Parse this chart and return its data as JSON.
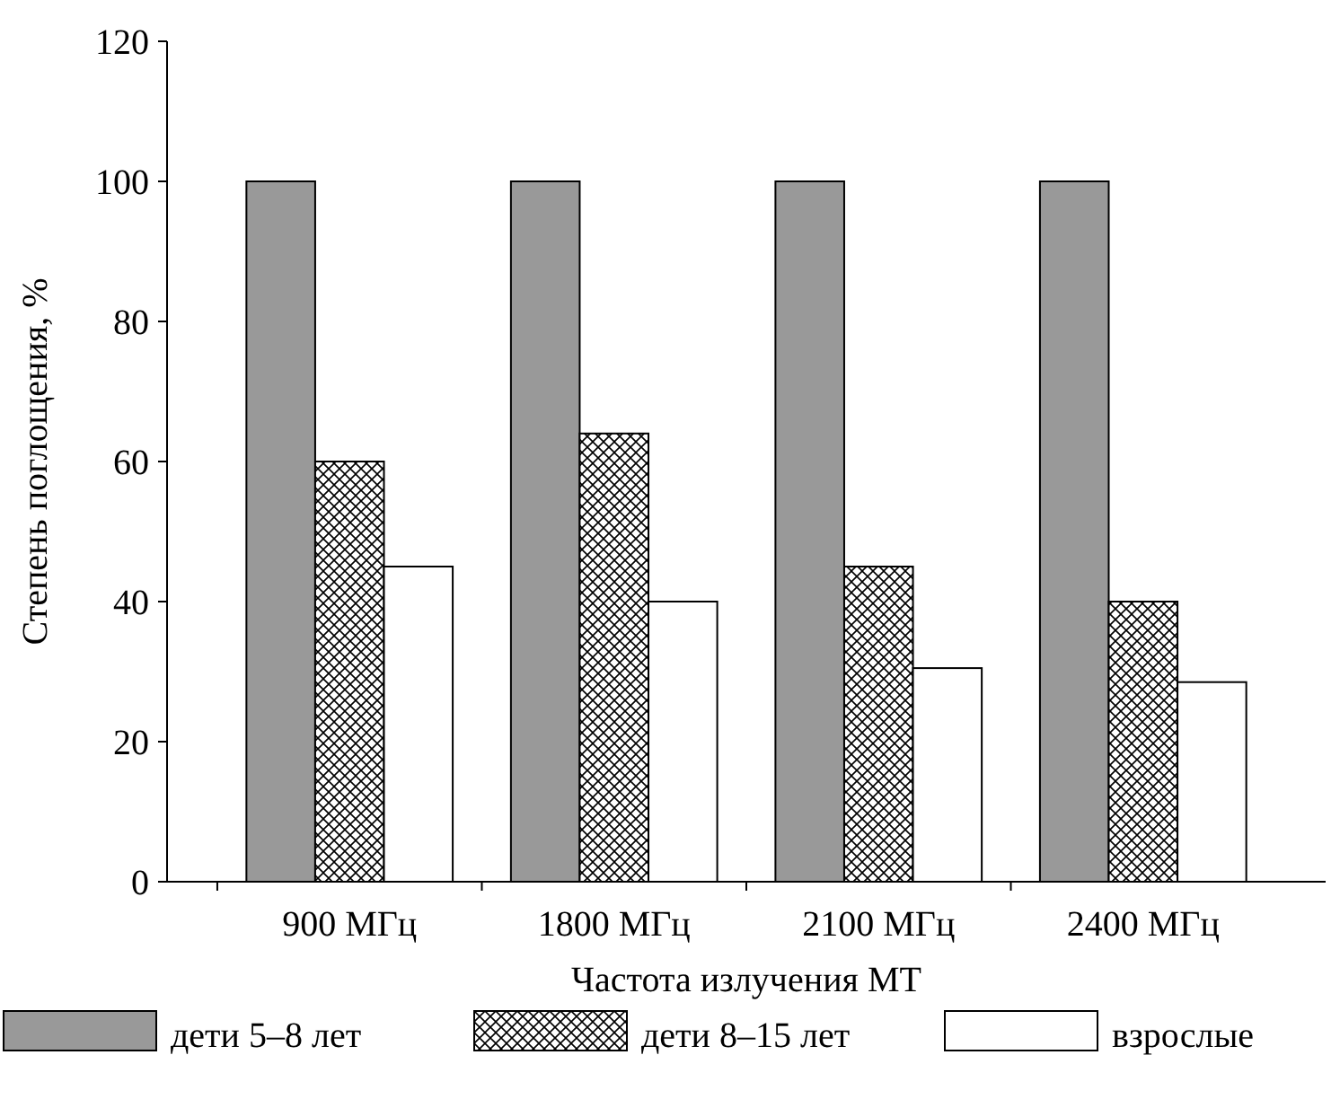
{
  "chart_data": {
    "type": "bar",
    "xlabel": "Частота излучения МТ",
    "ylabel": "Степень поглощения, %",
    "categories": [
      "900 МГц",
      "1800 МГц",
      "2100 МГц",
      "2400 МГц"
    ],
    "series": [
      {
        "name": "дети 5–8 лет",
        "color": "#999999",
        "values": [
          100,
          100,
          100,
          100
        ]
      },
      {
        "name": "дети 8–15 лет",
        "color": "#000000",
        "values": [
          60,
          64,
          45,
          40
        ]
      },
      {
        "name": "взрослые",
        "color": "#ffffff",
        "values": [
          45,
          40,
          30.5,
          28.5
        ]
      }
    ],
    "ylim": [
      0,
      120
    ],
    "yticks": [
      0,
      20,
      40,
      60,
      80,
      100,
      120
    ],
    "grid": false,
    "legend": "bottom"
  }
}
